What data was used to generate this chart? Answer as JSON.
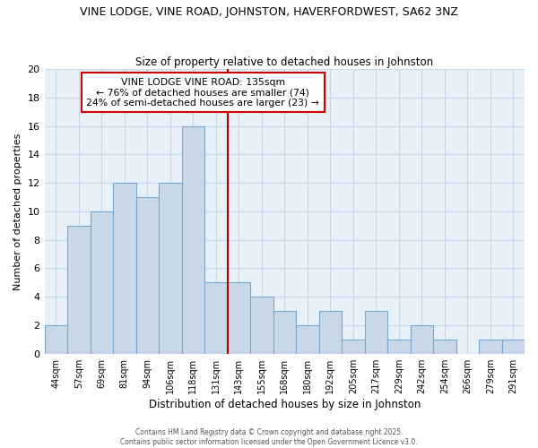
{
  "title": "VINE LODGE, VINE ROAD, JOHNSTON, HAVERFORDWEST, SA62 3NZ",
  "subtitle": "Size of property relative to detached houses in Johnston",
  "xlabel": "Distribution of detached houses by size in Johnston",
  "ylabel": "Number of detached properties",
  "bar_labels": [
    "44sqm",
    "57sqm",
    "69sqm",
    "81sqm",
    "94sqm",
    "106sqm",
    "118sqm",
    "131sqm",
    "143sqm",
    "155sqm",
    "168sqm",
    "180sqm",
    "192sqm",
    "205sqm",
    "217sqm",
    "229sqm",
    "242sqm",
    "254sqm",
    "266sqm",
    "279sqm",
    "291sqm"
  ],
  "bar_heights": [
    2,
    9,
    10,
    12,
    11,
    12,
    16,
    5,
    5,
    4,
    3,
    2,
    3,
    1,
    3,
    1,
    2,
    1,
    0,
    1,
    1
  ],
  "bar_color": "#c8d8e8",
  "bar_edge_color": "#7aa8cc",
  "vline_color": "#aa0000",
  "annotation_line1": "VINE LODGE VINE ROAD: 135sqm",
  "annotation_line2": "← 76% of detached houses are smaller (74)",
  "annotation_line3": "24% of semi-detached houses are larger (23) →",
  "annotation_box_facecolor": "#ffffff",
  "annotation_border_color": "#cc0000",
  "ylim": [
    0,
    20
  ],
  "yticks": [
    0,
    2,
    4,
    6,
    8,
    10,
    12,
    14,
    16,
    18,
    20
  ],
  "grid_color": "#c8d8e8",
  "footer_line1": "Contains HM Land Registry data © Crown copyright and database right 2025.",
  "footer_line2": "Contains public sector information licensed under the Open Government Licence v3.0.",
  "bg_color": "#ffffff",
  "plot_bg_color": "#e8f0f8"
}
